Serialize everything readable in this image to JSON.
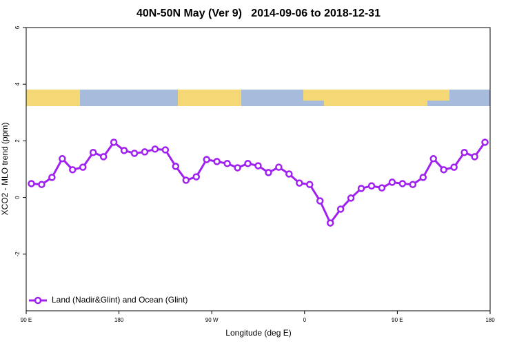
{
  "chart_data": {
    "type": "line",
    "title": "40N-50N May (Ver 9)   2014-09-06 to 2018-12-31",
    "xlabel": "Longitude (deg E)",
    "ylabel": "XCO2 - MLO trend (ppm)",
    "x": [
      95,
      105,
      115,
      125,
      135,
      145,
      155,
      165,
      175,
      185,
      195,
      205,
      215,
      225,
      235,
      245,
      255,
      265,
      275,
      285,
      295,
      305,
      315,
      325,
      335,
      345,
      355,
      365,
      375,
      385,
      395,
      405,
      415,
      425,
      435,
      445,
      455,
      465,
      475,
      485,
      495,
      505,
      515,
      525,
      535
    ],
    "series": [
      {
        "name": "Land (Nadir&Glint) and Ocean (Glint)",
        "color": "#a020f0",
        "values": [
          0.49,
          0.46,
          0.71,
          1.37,
          0.98,
          1.07,
          1.59,
          1.44,
          1.95,
          1.66,
          1.56,
          1.61,
          1.71,
          1.68,
          1.1,
          0.61,
          0.73,
          1.34,
          1.27,
          1.2,
          1.05,
          1.2,
          1.12,
          0.88,
          1.07,
          0.83,
          0.51,
          0.46,
          -0.12,
          -0.9,
          -0.41,
          -0.02,
          0.32,
          0.41,
          0.34,
          0.54,
          0.49,
          0.46,
          0.71,
          1.37,
          0.98,
          1.07,
          1.59,
          1.44,
          1.95
        ]
      }
    ],
    "xlim": [
      90,
      540
    ],
    "xticks": [
      {
        "value": 90,
        "label": "90 E"
      },
      {
        "value": 180,
        "label": "180"
      },
      {
        "value": 270,
        "label": "90 W"
      },
      {
        "value": 360,
        "label": "0"
      },
      {
        "value": 450,
        "label": "90 E"
      },
      {
        "value": 540,
        "label": "180"
      }
    ],
    "ylim": [
      -4,
      6
    ],
    "yticks": [
      -2,
      0,
      2,
      4,
      6
    ],
    "legend": "bottom-left"
  }
}
